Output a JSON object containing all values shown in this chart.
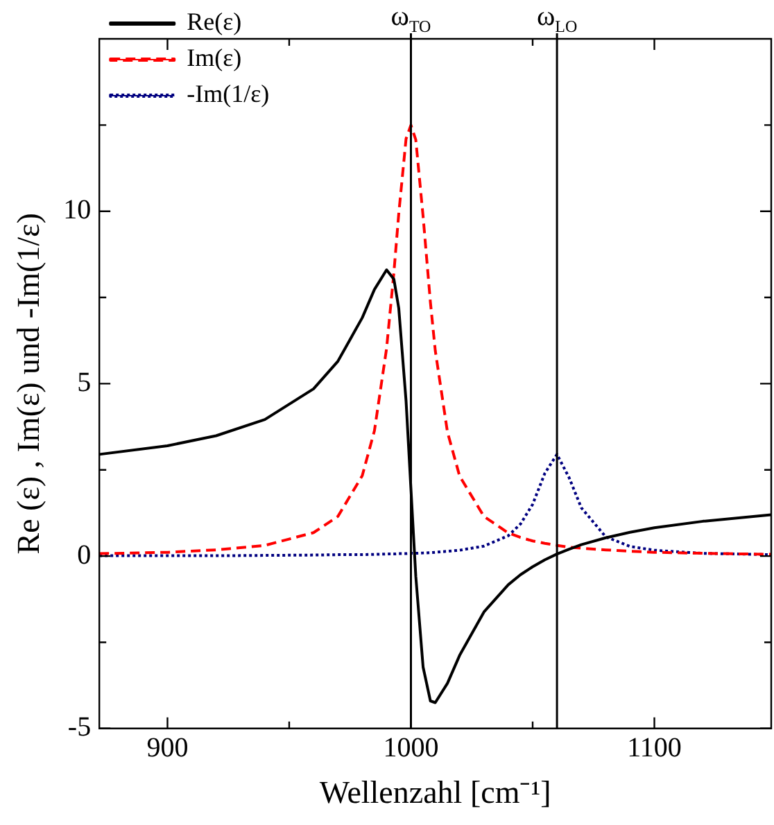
{
  "chart_data": {
    "type": "line",
    "xlabel": "Wellenzahl [cm⁻¹]",
    "ylabel": "Re (ε) , Im(ε) und -Im(1/ε)",
    "x": [
      872,
      900,
      920,
      940,
      960,
      970,
      980,
      985,
      990,
      993,
      995,
      998,
      1000,
      1002,
      1005,
      1008,
      1010,
      1015,
      1020,
      1030,
      1040,
      1045,
      1050,
      1055,
      1060,
      1065,
      1070,
      1080,
      1090,
      1100,
      1120,
      1148
    ],
    "series": [
      {
        "name": "Re(ε)",
        "color": "#000000",
        "line_style": "solid",
        "values": [
          2.95,
          3.2,
          3.49,
          3.96,
          4.85,
          5.65,
          6.91,
          7.73,
          8.3,
          8.03,
          7.19,
          4.5,
          1.95,
          -0.59,
          -3.22,
          -4.2,
          -4.25,
          -3.69,
          -2.88,
          -1.62,
          -0.83,
          -0.54,
          -0.31,
          -0.11,
          0.06,
          0.2,
          0.33,
          0.53,
          0.69,
          0.82,
          1.01,
          1.2
        ]
      },
      {
        "name": "Im(ε)",
        "color": "#ff0000",
        "line_style": "dashed",
        "values": [
          0.07,
          0.11,
          0.18,
          0.31,
          0.68,
          1.15,
          2.33,
          3.63,
          6.02,
          8.22,
          9.93,
          12.1,
          12.5,
          12.07,
          9.85,
          7.36,
          5.96,
          3.6,
          2.32,
          1.15,
          0.67,
          0.54,
          0.44,
          0.37,
          0.31,
          0.26,
          0.23,
          0.18,
          0.14,
          0.11,
          0.08,
          0.05
        ]
      },
      {
        "name": "-Im(1/ε)",
        "color": "#000080",
        "line_style": "dotted",
        "values": [
          0.01,
          0.01,
          0.01,
          0.02,
          0.03,
          0.04,
          0.04,
          0.05,
          0.06,
          0.06,
          0.07,
          0.07,
          0.08,
          0.08,
          0.09,
          0.1,
          0.11,
          0.14,
          0.17,
          0.29,
          0.59,
          0.93,
          1.5,
          2.4,
          2.95,
          2.27,
          1.4,
          0.56,
          0.28,
          0.17,
          0.08,
          0.04
        ]
      }
    ],
    "xlim": [
      872,
      1148
    ],
    "xticks": [
      900,
      {
        "value": 950,
        "label": null
      },
      1000,
      {
        "value": 1050,
        "label": null
      },
      1100
    ],
    "ylim": [
      -5,
      15
    ],
    "yticks": [
      -5,
      {
        "value": -2.5,
        "label": null
      },
      0,
      {
        "value": 2.5,
        "label": null
      },
      5,
      {
        "value": 7.5,
        "label": null
      },
      10,
      {
        "value": 12.5,
        "label": null
      }
    ],
    "ref_lines": [
      {
        "axis": "x",
        "value": 1000,
        "label": "ω$_{TO}$",
        "color": "#000000"
      },
      {
        "axis": "x",
        "value": 1060,
        "label": "ω$_{LO}$",
        "color": "#000000"
      }
    ],
    "legend": "top left",
    "grid": false
  }
}
